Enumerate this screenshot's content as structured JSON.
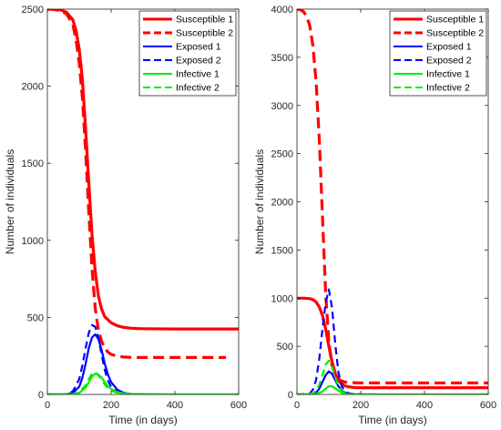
{
  "chart_data": [
    {
      "type": "line",
      "title": "",
      "xlabel": "Time (in days)",
      "ylabel": "Number of individuals",
      "xlim": [
        0,
        600
      ],
      "ylim": [
        0,
        2500
      ],
      "xticks": [
        0,
        200,
        400,
        600
      ],
      "yticks": [
        0,
        500,
        1000,
        1500,
        2000,
        2500
      ],
      "grid": false,
      "legend_position": "top-right",
      "series": [
        {
          "name": "Susceptible 1",
          "color": "#ff0000",
          "dash": "solid",
          "x": [
            0,
            20,
            40,
            60,
            80,
            90,
            100,
            110,
            120,
            130,
            140,
            150,
            160,
            170,
            180,
            200,
            220,
            240,
            260,
            280,
            300,
            400,
            500,
            600
          ],
          "y": [
            2500,
            2500,
            2495,
            2480,
            2430,
            2360,
            2240,
            2040,
            1720,
            1370,
            1040,
            800,
            640,
            555,
            505,
            465,
            445,
            435,
            430,
            428,
            427,
            425,
            425,
            425
          ]
        },
        {
          "name": "Susceptible 2",
          "color": "#ff0000",
          "dash": "dashed",
          "x": [
            0,
            20,
            40,
            60,
            80,
            90,
            100,
            110,
            120,
            130,
            140,
            150,
            160,
            170,
            180,
            190,
            200,
            220,
            240,
            260,
            280,
            300,
            400,
            500,
            560
          ],
          "y": [
            2500,
            2498,
            2490,
            2470,
            2400,
            2300,
            2150,
            1920,
            1580,
            1180,
            820,
            560,
            420,
            345,
            300,
            275,
            260,
            248,
            243,
            241,
            240,
            240,
            240,
            240,
            240
          ]
        },
        {
          "name": "Exposed 1",
          "color": "#0000ff",
          "dash": "solid",
          "x": [
            0,
            60,
            80,
            100,
            110,
            120,
            130,
            140,
            150,
            160,
            170,
            180,
            190,
            200,
            220,
            240,
            260,
            280,
            300,
            400,
            500,
            600
          ],
          "y": [
            0,
            2,
            10,
            50,
            110,
            200,
            300,
            370,
            390,
            360,
            290,
            200,
            130,
            80,
            30,
            10,
            4,
            2,
            1,
            0,
            0,
            0
          ]
        },
        {
          "name": "Exposed 2",
          "color": "#0000ff",
          "dash": "dashed",
          "x": [
            0,
            60,
            80,
            100,
            110,
            120,
            130,
            140,
            150,
            160,
            170,
            180,
            190,
            200,
            220,
            240,
            260,
            280,
            300
          ],
          "y": [
            0,
            3,
            20,
            100,
            190,
            300,
            400,
            450,
            440,
            370,
            260,
            160,
            90,
            50,
            15,
            5,
            2,
            1,
            0
          ]
        },
        {
          "name": "Infective 1",
          "color": "#00ee00",
          "dash": "solid",
          "x": [
            0,
            80,
            100,
            120,
            130,
            140,
            150,
            160,
            170,
            180,
            190,
            200,
            220,
            240,
            260,
            280,
            300,
            400,
            500,
            600
          ],
          "y": [
            0,
            2,
            10,
            45,
            80,
            115,
            135,
            130,
            110,
            80,
            55,
            35,
            15,
            6,
            3,
            1,
            0,
            0,
            0,
            0
          ]
        },
        {
          "name": "Infective 2",
          "color": "#00ee00",
          "dash": "dashed",
          "x": [
            0,
            80,
            100,
            120,
            130,
            140,
            150,
            160,
            170,
            180,
            190,
            200,
            220,
            240,
            260,
            280,
            300
          ],
          "y": [
            0,
            3,
            15,
            60,
            100,
            135,
            145,
            125,
            95,
            65,
            40,
            25,
            10,
            4,
            2,
            1,
            0
          ]
        }
      ]
    },
    {
      "type": "line",
      "title": "",
      "xlabel": "Time (in days)",
      "ylabel": "Number of individuals",
      "xlim": [
        0,
        600
      ],
      "ylim": [
        0,
        4000
      ],
      "xticks": [
        0,
        200,
        400,
        600
      ],
      "yticks": [
        0,
        500,
        1000,
        1500,
        2000,
        2500,
        3000,
        3500,
        4000
      ],
      "grid": false,
      "legend_position": "top-right",
      "series": [
        {
          "name": "Susceptible 1",
          "color": "#ff0000",
          "dash": "solid",
          "x": [
            0,
            20,
            40,
            50,
            60,
            70,
            80,
            90,
            100,
            110,
            120,
            130,
            140,
            150,
            160,
            180,
            200,
            250,
            300,
            400,
            500,
            600
          ],
          "y": [
            1000,
            1000,
            995,
            985,
            960,
            910,
            820,
            680,
            500,
            340,
            220,
            150,
            110,
            90,
            80,
            72,
            70,
            70,
            70,
            70,
            70,
            70
          ]
        },
        {
          "name": "Susceptible 2",
          "color": "#ff0000",
          "dash": "dashed",
          "x": [
            0,
            10,
            20,
            30,
            40,
            50,
            60,
            70,
            80,
            90,
            100,
            110,
            120,
            130,
            140,
            150,
            160,
            180,
            200,
            250,
            300,
            400,
            500,
            600
          ],
          "y": [
            4000,
            3995,
            3975,
            3930,
            3830,
            3620,
            3250,
            2650,
            1850,
            1050,
            550,
            300,
            200,
            160,
            140,
            130,
            125,
            122,
            120,
            120,
            120,
            120,
            120,
            120
          ]
        },
        {
          "name": "Exposed 1",
          "color": "#0000ff",
          "dash": "solid",
          "x": [
            0,
            40,
            60,
            70,
            80,
            90,
            100,
            110,
            120,
            130,
            140,
            150,
            160,
            180,
            200,
            250,
            300,
            400,
            600
          ],
          "y": [
            0,
            2,
            20,
            60,
            130,
            200,
            240,
            215,
            150,
            85,
            45,
            20,
            10,
            3,
            1,
            0,
            0,
            0,
            0
          ]
        },
        {
          "name": "Exposed 2",
          "color": "#0000ff",
          "dash": "dashed",
          "x": [
            0,
            40,
            50,
            60,
            70,
            80,
            90,
            100,
            110,
            120,
            130,
            140,
            150,
            160,
            180,
            200,
            250
          ],
          "y": [
            0,
            10,
            50,
            150,
            370,
            680,
            950,
            1090,
            900,
            530,
            230,
            90,
            35,
            15,
            4,
            1,
            0
          ]
        },
        {
          "name": "Infective 1",
          "color": "#00ee00",
          "dash": "solid",
          "x": [
            0,
            60,
            80,
            90,
            100,
            110,
            120,
            130,
            140,
            150,
            160,
            180,
            200,
            250,
            300,
            400,
            600
          ],
          "y": [
            0,
            5,
            30,
            60,
            85,
            85,
            65,
            40,
            20,
            10,
            5,
            1,
            0,
            0,
            0,
            0,
            0
          ]
        },
        {
          "name": "Infective 2",
          "color": "#00ee00",
          "dash": "dashed",
          "x": [
            0,
            50,
            60,
            70,
            80,
            90,
            100,
            110,
            120,
            130,
            140,
            150,
            160,
            180,
            200,
            250
          ],
          "y": [
            0,
            10,
            40,
            100,
            200,
            310,
            350,
            290,
            180,
            90,
            40,
            15,
            6,
            2,
            0,
            0
          ]
        }
      ]
    }
  ]
}
